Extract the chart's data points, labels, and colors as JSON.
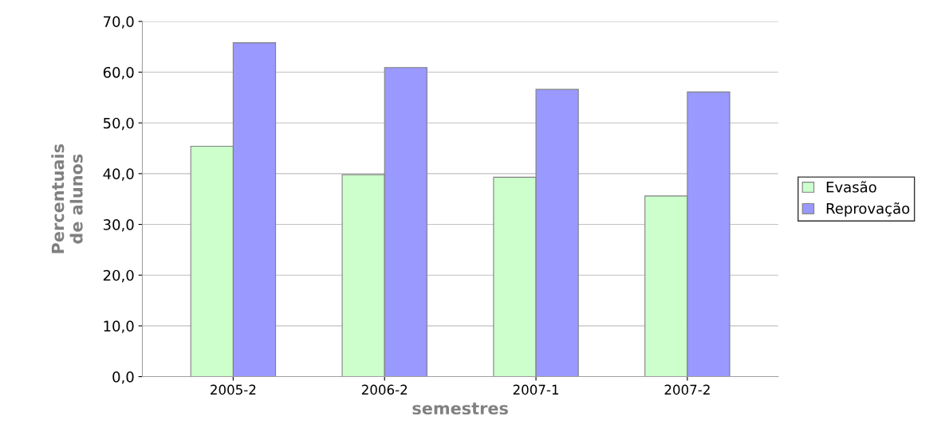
{
  "chart_data": {
    "type": "bar",
    "xlabel": "semestres",
    "ylabel": "Percentuais\nde alunos",
    "categories": [
      "2005-2",
      "2006-2",
      "2007-1",
      "2007-2"
    ],
    "series": [
      {
        "name": "Evasão",
        "color": "#ccffcc",
        "values": [
          45.4,
          39.8,
          39.3,
          35.6
        ]
      },
      {
        "name": "Reprovação",
        "color": "#9999ff",
        "values": [
          65.8,
          60.9,
          56.6,
          56.1
        ]
      }
    ],
    "ylim": [
      0,
      70
    ],
    "yticks": [
      {
        "value": 0,
        "label": "0,0"
      },
      {
        "value": 10,
        "label": "10,0"
      },
      {
        "value": 20,
        "label": "20,0"
      },
      {
        "value": 30,
        "label": "30,0"
      },
      {
        "value": 40,
        "label": "40,0"
      },
      {
        "value": 50,
        "label": "50,0"
      },
      {
        "value": 60,
        "label": "60,0"
      },
      {
        "value": 70,
        "label": "70,0"
      }
    ],
    "grid": "y",
    "legend": "right"
  }
}
